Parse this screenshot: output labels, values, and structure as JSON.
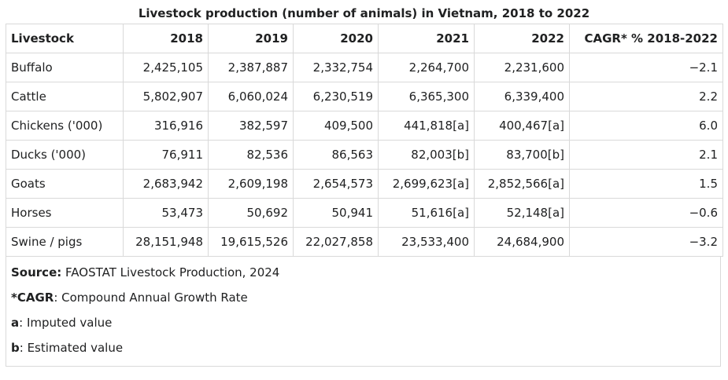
{
  "caption": "Livestock production (number of animals) in Vietnam, 2018 to 2022",
  "headers": [
    "Livestock",
    "2018",
    "2019",
    "2020",
    "2021",
    "2022",
    "CAGR* % 2018-2022"
  ],
  "rows": [
    [
      "Buffalo",
      "2,425,105",
      "2,387,887",
      "2,332,754",
      "2,264,700",
      "2,231,600",
      "−2.1"
    ],
    [
      "Cattle",
      "5,802,907",
      "6,060,024",
      "6,230,519",
      "6,365,300",
      "6,339,400",
      "2.2"
    ],
    [
      "Chickens ('000)",
      "316,916",
      "382,597",
      "409,500",
      "441,818[a]",
      "400,467[a]",
      "6.0"
    ],
    [
      "Ducks ('000)",
      "76,911",
      "82,536",
      "86,563",
      "82,003[b]",
      "83,700[b]",
      "2.1"
    ],
    [
      "Goats",
      "2,683,942",
      "2,609,198",
      "2,654,573",
      "2,699,623[a]",
      "2,852,566[a]",
      "1.5"
    ],
    [
      "Horses",
      "53,473",
      "50,692",
      "50,941",
      "51,616[a]",
      "52,148[a]",
      "−0.6"
    ],
    [
      "Swine / pigs",
      "28,151,948",
      "19,615,526",
      "22,027,858",
      "23,533,400",
      "24,684,900",
      "−3.2"
    ]
  ],
  "notes": {
    "source_label": "Source:",
    "source_text": " FAOSTAT Livestock Production, 2024",
    "cagr_label": "*CAGR",
    "cagr_text": ": Compound Annual Growth Rate",
    "a_label": "a",
    "a_text": ": Imputed value",
    "b_label": "b",
    "b_text": ": Estimated value"
  }
}
